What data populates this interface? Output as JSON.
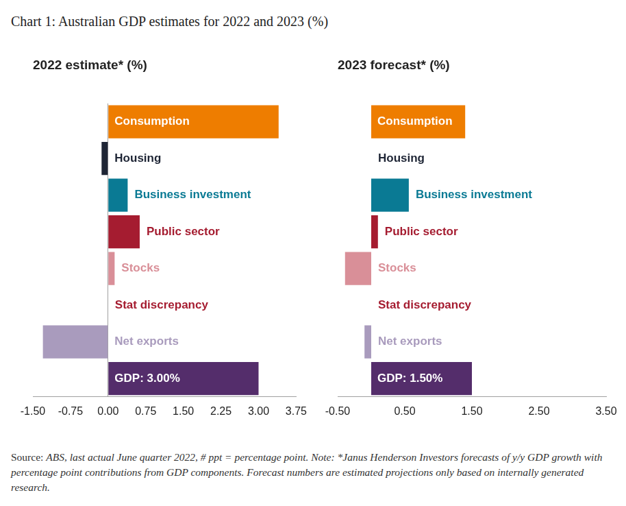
{
  "title": "Chart 1: Australian GDP estimates for 2022 and 2023 (%)",
  "footnote": {
    "label": "Source:",
    "text": "ABS, last actual June quarter 2022, # ppt = percentage point. Note: *Janus Henderson Investors forecasts of y/y GDP growth with percentage point contributions from GDP components. Forecast numbers are estimated projections only based on internally generated research."
  },
  "chart_data": [
    {
      "type": "bar",
      "orientation": "horizontal",
      "title": "2022 estimate* (%)",
      "categories": [
        "Consumption",
        "Housing",
        "Business investment",
        "Public sector",
        "Stocks",
        "Stat discrepancy",
        "Net exports",
        "GDP: 3.00%"
      ],
      "values": [
        3.4,
        -0.13,
        0.39,
        0.63,
        0.13,
        0,
        -1.3,
        3.0
      ],
      "colors": [
        "#ee7d00",
        "#1e2535",
        "#0a7a94",
        "#a51c30",
        "#d98f98",
        "#a51c30",
        "#a99bbd",
        "#542d6b"
      ],
      "xlim": [
        -1.5,
        3.75
      ],
      "xticks": [
        {
          "value": -1.5,
          "label": "-1.50"
        },
        {
          "value": -0.75,
          "label": "-0.75"
        },
        {
          "value": 0,
          "label": "0.00"
        },
        {
          "value": 0.75,
          "label": "0.75"
        },
        {
          "value": 1.5,
          "label": "1.50"
        },
        {
          "value": 2.25,
          "label": "2.25"
        },
        {
          "value": 3,
          "label": "3.00"
        },
        {
          "value": 3.75,
          "label": "3.75"
        }
      ],
      "grid": false,
      "tick_labels": "x"
    },
    {
      "type": "bar",
      "orientation": "horizontal",
      "title": "2023 forecast* (%)",
      "categories": [
        "Consumption",
        "Housing",
        "Business investment",
        "Public sector",
        "Stocks",
        "Stat discrepancy",
        "Net exports",
        "GDP: 1.50%"
      ],
      "values": [
        1.4,
        0,
        0.56,
        0.1,
        -0.39,
        0,
        -0.1,
        1.5
      ],
      "colors": [
        "#ee7d00",
        "#1e2535",
        "#0a7a94",
        "#a51c30",
        "#d98f98",
        "#a51c30",
        "#a99bbd",
        "#542d6b"
      ],
      "xlim": [
        -0.5,
        3.5
      ],
      "xticks": [
        {
          "value": -0.5,
          "label": "-0.50"
        },
        {
          "value": 0.5,
          "label": "0.50"
        },
        {
          "value": 1.5,
          "label": "1.50"
        },
        {
          "value": 2.5,
          "label": "2.50"
        },
        {
          "value": 3.5,
          "label": "3.50"
        }
      ],
      "grid": false,
      "tick_labels": "x"
    }
  ]
}
